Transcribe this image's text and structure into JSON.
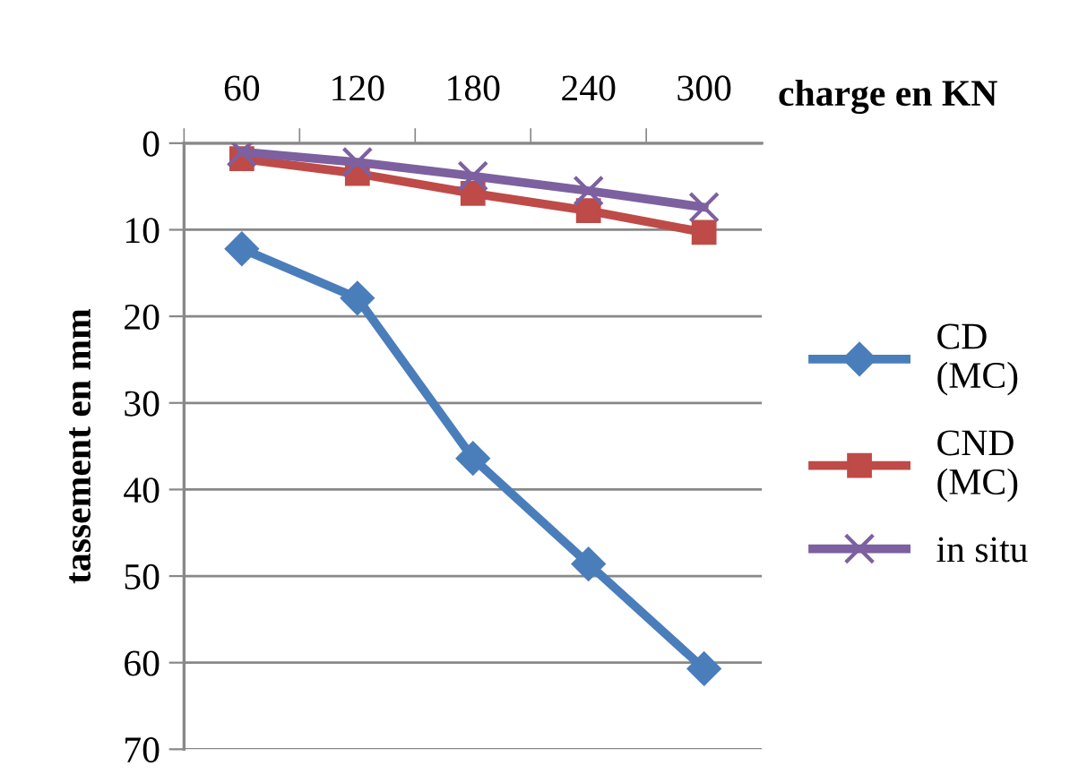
{
  "chart_data": {
    "type": "line",
    "xlabel": "charge en KN",
    "ylabel": "tassement en mm",
    "categories": [
      "60",
      "120",
      "180",
      "240",
      "300"
    ],
    "series": [
      {
        "name": "CD (MC)",
        "color": "#4a7ebb",
        "marker": "diamond",
        "values": [
          12.2,
          17.9,
          36.4,
          48.6,
          60.7
        ]
      },
      {
        "name": "CND (MC)",
        "color": "#be4b48",
        "marker": "square",
        "values": [
          1.8,
          3.5,
          5.8,
          7.8,
          10.3
        ]
      },
      {
        "name": "in situ",
        "color": "#7d60a0",
        "marker": "cross",
        "values": [
          1.0,
          2.2,
          3.8,
          5.5,
          7.4
        ]
      }
    ],
    "ylim": [
      70,
      0
    ],
    "yticks": [
      0,
      10,
      20,
      30,
      40,
      50,
      60,
      70
    ],
    "grid": "y",
    "legend": "right"
  }
}
